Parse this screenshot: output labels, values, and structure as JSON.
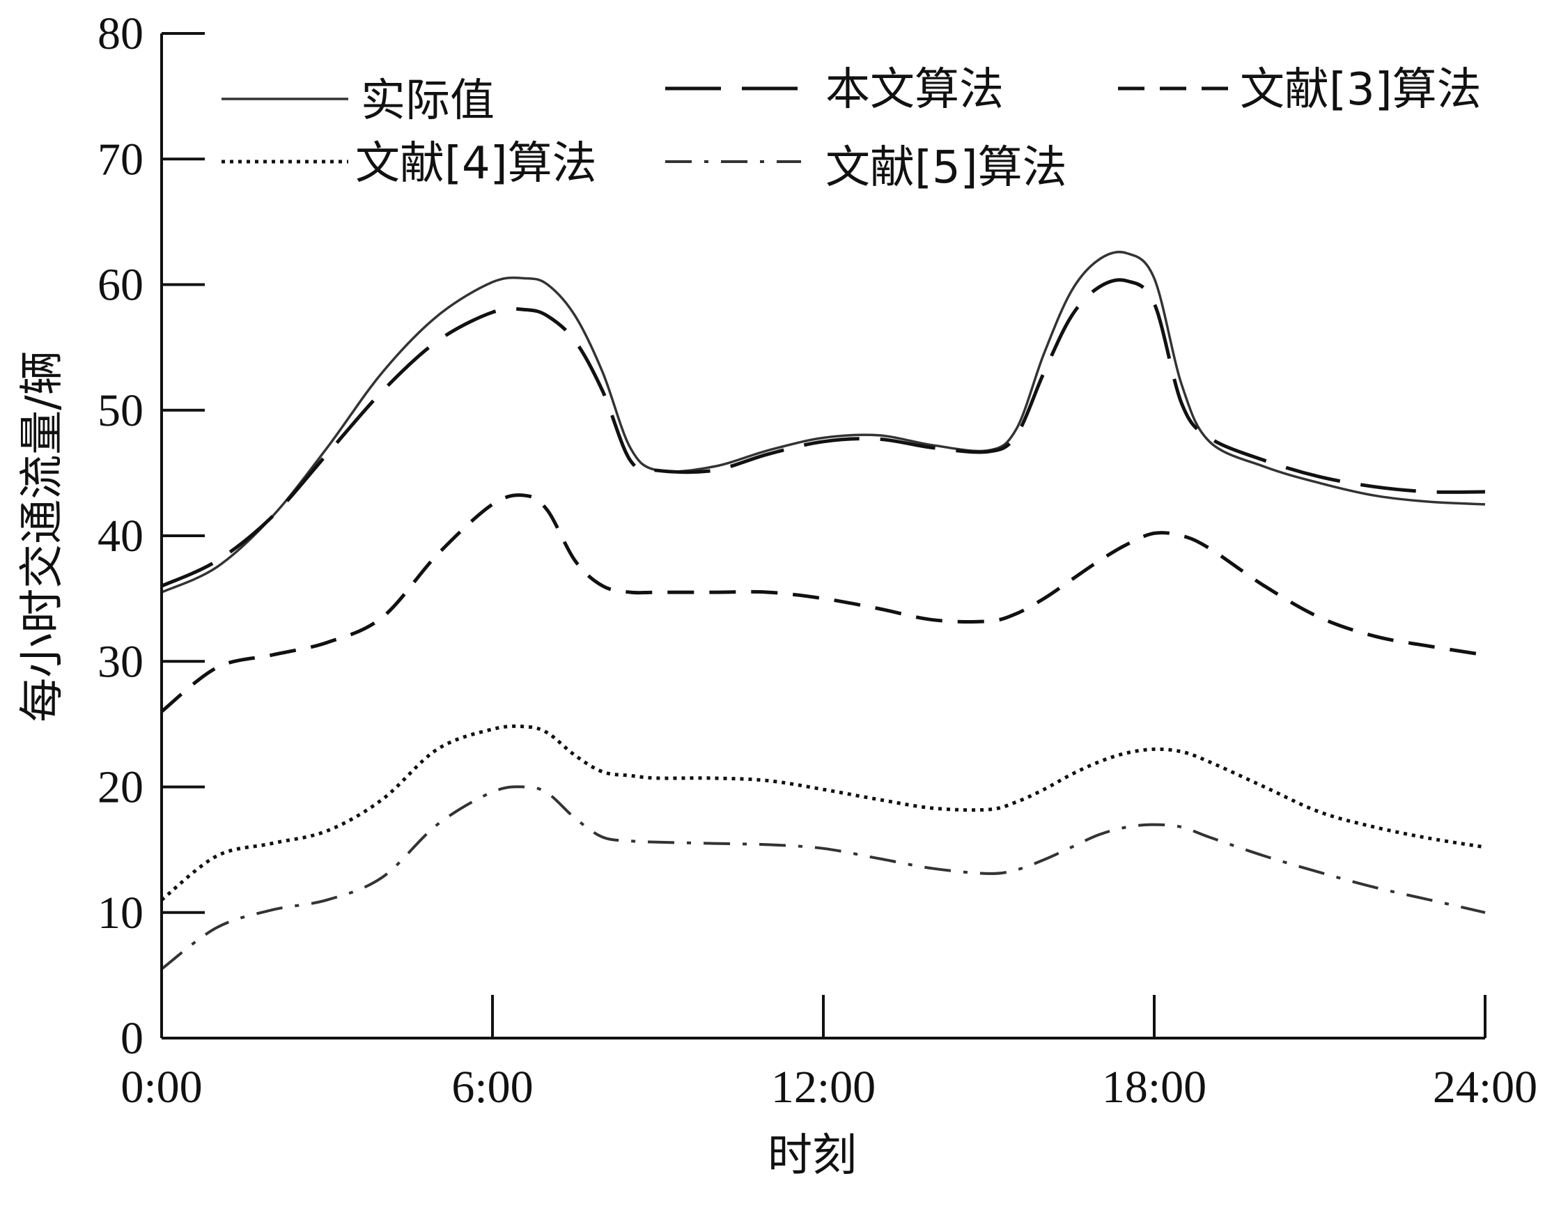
{
  "chart_data": {
    "type": "line",
    "title": "",
    "xlabel": "时刻",
    "ylabel": "每小时交通流量/辆",
    "xlim": [
      0,
      24
    ],
    "ylim": [
      0,
      80
    ],
    "x_ticks": [
      0,
      6,
      12,
      18,
      24
    ],
    "x_tick_labels": [
      "0:00",
      "6:00",
      "12:00",
      "18:00",
      "24:00"
    ],
    "y_ticks": [
      0,
      10,
      20,
      30,
      40,
      50,
      60,
      70,
      80
    ],
    "y_tick_labels": [
      "0",
      "10",
      "20",
      "30",
      "40",
      "50",
      "60",
      "70",
      "80"
    ],
    "grid": false,
    "legend_position": "top",
    "x": [
      0,
      1,
      2,
      3,
      4,
      5,
      6,
      6.6,
      7,
      7.5,
      8,
      8.5,
      9,
      10,
      11,
      12,
      13,
      14,
      15,
      15.5,
      16,
      16.5,
      17,
      17.5,
      18,
      18.5,
      19,
      20,
      21,
      22,
      23,
      24
    ],
    "series": [
      {
        "name": "实际值",
        "dash": "solid",
        "color": "#333333",
        "values": [
          35.5,
          37.5,
          41.5,
          47,
          53,
          57.5,
          60.2,
          60.5,
          60,
          57.5,
          53,
          47,
          45.2,
          45.5,
          46.8,
          47.8,
          48,
          47.2,
          46.8,
          48.5,
          54.5,
          59.5,
          62,
          62.5,
          60.5,
          52,
          47.5,
          45.5,
          44.2,
          43.2,
          42.7,
          42.5
        ]
      },
      {
        "name": "本文算法",
        "dash": "long",
        "color": "#111111",
        "values": [
          36,
          38,
          41.5,
          46.5,
          51.5,
          55.5,
          57.8,
          58,
          57.5,
          55.5,
          51.5,
          46,
          45.2,
          45.2,
          46.5,
          47.5,
          47.7,
          47,
          46.7,
          48,
          53,
          57.5,
          59.8,
          60.3,
          58.5,
          50.5,
          47.8,
          46,
          44.7,
          43.9,
          43.5,
          43.5
        ]
      },
      {
        "name": "文献[3]算法",
        "dash": "medium",
        "color": "#111111",
        "values": [
          26,
          29.5,
          30.5,
          31.5,
          33.5,
          38.5,
          42.5,
          43.2,
          42,
          38,
          36,
          35.5,
          35.5,
          35.5,
          35.5,
          35,
          34.2,
          33.3,
          33.2,
          33.8,
          35,
          36.5,
          38,
          39.3,
          40.2,
          40,
          39,
          36,
          33.5,
          32,
          31.2,
          30.5
        ]
      },
      {
        "name": "文献[4]算法",
        "dash": "dotted",
        "color": "#111111",
        "values": [
          11,
          14.5,
          15.5,
          16.5,
          19,
          23,
          24.6,
          24.8,
          24.3,
          22.5,
          21.2,
          20.9,
          20.7,
          20.7,
          20.5,
          19.8,
          19,
          18.3,
          18.2,
          18.8,
          19.8,
          21,
          22,
          22.7,
          23,
          22.8,
          22,
          20,
          18,
          16.8,
          15.9,
          15.2
        ]
      },
      {
        "name": "文献[5]算法",
        "dash": "dashdot",
        "color": "#333333",
        "values": [
          5.5,
          8.8,
          10.2,
          11,
          12.8,
          17,
          19.6,
          20,
          19.5,
          17.5,
          16,
          15.7,
          15.6,
          15.5,
          15.4,
          15.1,
          14.3,
          13.5,
          13.1,
          13.4,
          14.2,
          15.2,
          16.2,
          16.8,
          17,
          16.8,
          16,
          14.5,
          13.2,
          12,
          11,
          10
        ]
      }
    ]
  }
}
